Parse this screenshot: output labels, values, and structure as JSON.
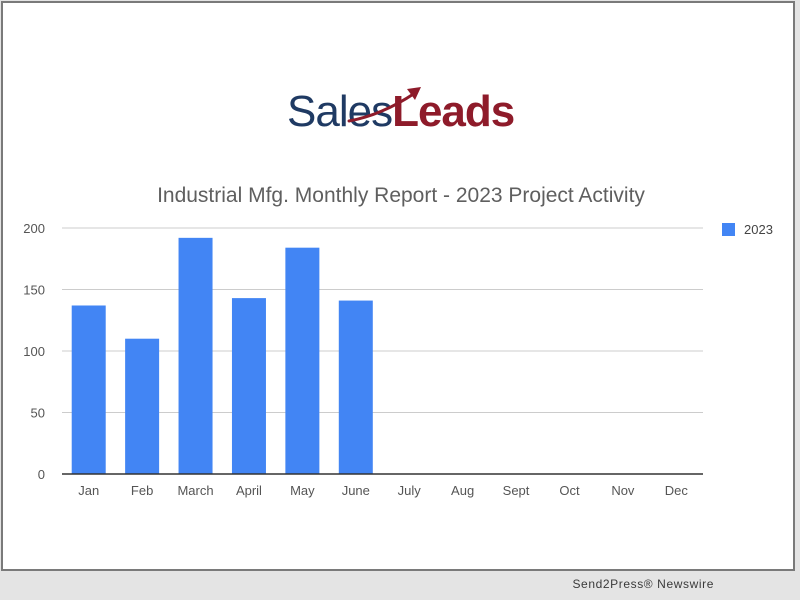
{
  "logo": {
    "part1": "Sales",
    "part2": "Leads",
    "color_sales": "#1f3a63",
    "color_leads": "#8e1b2a"
  },
  "footer": {
    "credit": "Send2Press® Newswire"
  },
  "chart_data": {
    "type": "bar",
    "title": "Industrial Mfg. Monthly Report - 2023 Project Activity",
    "categories": [
      "Jan",
      "Feb",
      "March",
      "April",
      "May",
      "June",
      "July",
      "Aug",
      "Sept",
      "Oct",
      "Nov",
      "Dec"
    ],
    "series": [
      {
        "name": "2023",
        "color": "#4285f4",
        "values": [
          137,
          110,
          192,
          143,
          184,
          141,
          null,
          null,
          null,
          null,
          null,
          null
        ]
      }
    ],
    "ylim": [
      0,
      200
    ],
    "yticks": [
      0,
      50,
      100,
      150,
      200
    ],
    "grid": true,
    "legend": "right",
    "xlabel": "",
    "ylabel": ""
  }
}
